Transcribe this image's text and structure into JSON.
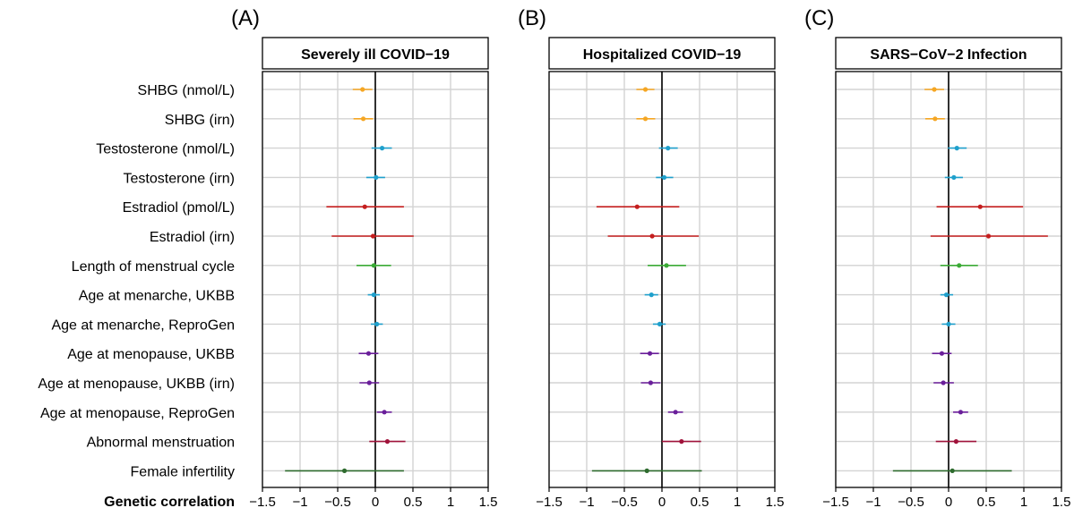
{
  "colors": {
    "orange": "#f5a623",
    "blue": "#1fa0cc",
    "red": "#c41e1e",
    "green": "#3aaa35",
    "purple": "#6a1f9a",
    "crimson": "#a0123a",
    "darkgreen": "#2e6b2e",
    "grid": "#d3d3d3"
  },
  "chart_data": {
    "type": "forest",
    "xlabel": "Genetic correlation",
    "xlim": [
      -1.5,
      1.5
    ],
    "xticks": [
      -1.5,
      -1,
      -0.5,
      0,
      0.5,
      1,
      1.5
    ],
    "xtick_labels": [
      "−1.5",
      "−1",
      "−0.5",
      "0",
      "0.5",
      "1",
      "1.5"
    ],
    "traits": [
      {
        "label": "SHBG (nmol/L)",
        "color": "orange"
      },
      {
        "label": "SHBG (irn)",
        "color": "orange"
      },
      {
        "label": "Testosterone (nmol/L)",
        "color": "blue"
      },
      {
        "label": "Testosterone (irn)",
        "color": "blue"
      },
      {
        "label": "Estradiol (pmol/L)",
        "color": "red"
      },
      {
        "label": "Estradiol (irn)",
        "color": "red"
      },
      {
        "label": "Length of menstrual cycle",
        "color": "green"
      },
      {
        "label": "Age at menarche, UKBB",
        "color": "blue"
      },
      {
        "label": "Age at menarche, ReproGen",
        "color": "blue"
      },
      {
        "label": "Age at menopause, UKBB",
        "color": "purple"
      },
      {
        "label": "Age at menopause, UKBB (irn)",
        "color": "purple"
      },
      {
        "label": "Age at menopause, ReproGen",
        "color": "purple"
      },
      {
        "label": "Abnormal menstruation",
        "color": "crimson"
      },
      {
        "label": "Female infertility",
        "color": "darkgreen"
      }
    ],
    "panels": [
      {
        "letter": "(A)",
        "title": "Severely ill COVID−19",
        "estimates": [
          [
            -0.17,
            -0.3,
            -0.04
          ],
          [
            -0.16,
            -0.29,
            -0.03
          ],
          [
            0.09,
            -0.05,
            0.22
          ],
          [
            0.01,
            -0.12,
            0.13
          ],
          [
            -0.14,
            -0.65,
            0.38
          ],
          [
            -0.03,
            -0.58,
            0.51
          ],
          [
            -0.02,
            -0.25,
            0.21
          ],
          [
            -0.02,
            -0.1,
            0.06
          ],
          [
            0.02,
            -0.06,
            0.1
          ],
          [
            -0.09,
            -0.22,
            0.04
          ],
          [
            -0.08,
            -0.21,
            0.05
          ],
          [
            0.12,
            0.02,
            0.22
          ],
          [
            0.16,
            -0.08,
            0.4
          ],
          [
            -0.41,
            -1.2,
            0.38
          ]
        ]
      },
      {
        "letter": "(B)",
        "title": "Hospitalized COVID−19",
        "estimates": [
          [
            -0.22,
            -0.34,
            -0.1
          ],
          [
            -0.22,
            -0.34,
            -0.09
          ],
          [
            0.08,
            -0.04,
            0.21
          ],
          [
            0.03,
            -0.08,
            0.15
          ],
          [
            -0.33,
            -0.87,
            0.23
          ],
          [
            -0.13,
            -0.72,
            0.49
          ],
          [
            0.06,
            -0.19,
            0.32
          ],
          [
            -0.14,
            -0.23,
            -0.05
          ],
          [
            -0.03,
            -0.12,
            0.05
          ],
          [
            -0.16,
            -0.29,
            -0.04
          ],
          [
            -0.15,
            -0.28,
            -0.02
          ],
          [
            0.18,
            0.08,
            0.28
          ],
          [
            0.26,
            0.0,
            0.52
          ],
          [
            -0.2,
            -0.93,
            0.53
          ]
        ]
      },
      {
        "letter": "(C)",
        "title": "SARS−CoV−2 Infection",
        "estimates": [
          [
            -0.19,
            -0.32,
            -0.06
          ],
          [
            -0.18,
            -0.31,
            -0.05
          ],
          [
            0.11,
            -0.01,
            0.24
          ],
          [
            0.07,
            -0.05,
            0.19
          ],
          [
            0.42,
            -0.16,
            0.99
          ],
          [
            0.53,
            -0.24,
            1.32
          ],
          [
            0.14,
            -0.11,
            0.39
          ],
          [
            -0.03,
            -0.11,
            0.06
          ],
          [
            0.0,
            -0.09,
            0.09
          ],
          [
            -0.09,
            -0.22,
            0.04
          ],
          [
            -0.07,
            -0.2,
            0.07
          ],
          [
            0.16,
            0.06,
            0.26
          ],
          [
            0.1,
            -0.17,
            0.37
          ],
          [
            0.05,
            -0.74,
            0.84
          ]
        ]
      }
    ]
  }
}
